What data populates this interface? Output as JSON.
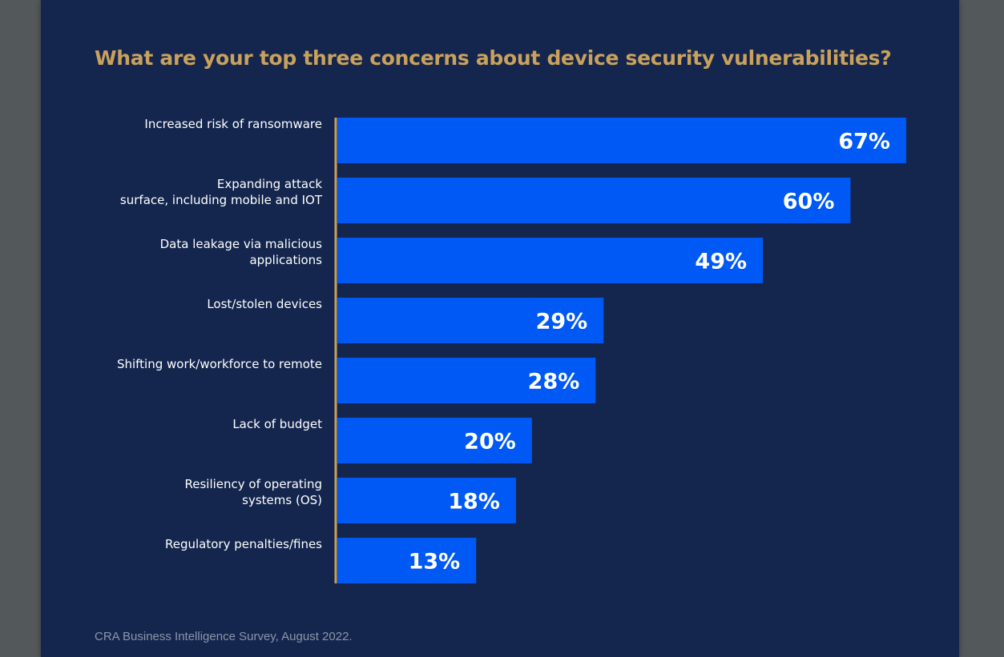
{
  "chart_data": {
    "type": "bar",
    "orientation": "horizontal",
    "title": "What are your top three concerns about device security vulnerabilities?",
    "categories": [
      [
        "Increased risk of ransomware"
      ],
      [
        "Expanding attack",
        "surface, including mobile and IOT"
      ],
      [
        "Data leakage via malicious",
        "applications"
      ],
      [
        "Lost/stolen devices"
      ],
      [
        "Shifting work/workforce to remote"
      ],
      [
        "Lack of budget"
      ],
      [
        "Resiliency of operating",
        "systems (OS)"
      ],
      [
        "Regulatory penalties/fines"
      ]
    ],
    "values": [
      67,
      60,
      49,
      29,
      28,
      20,
      18,
      13
    ],
    "value_suffix": "%",
    "xlabel": "",
    "ylabel": "",
    "grid": false,
    "source": "CRA Business Intelligence Survey, August 2022.",
    "colors": {
      "bar": "#0059f5",
      "axis": "#c9a15c",
      "title": "#c9a15c",
      "label": "#ffffff",
      "background": "#14264e"
    }
  }
}
